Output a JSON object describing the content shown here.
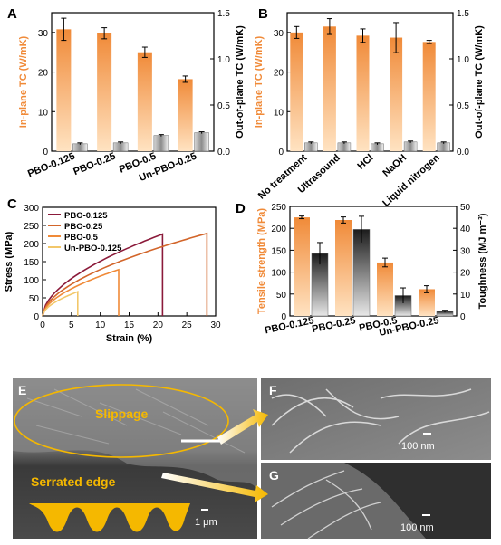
{
  "figure": {
    "panel_letters": [
      "A",
      "B",
      "C",
      "D",
      "E",
      "F",
      "G"
    ],
    "micrograph_labels": {
      "slippage": "Slippage",
      "serrated_edge": "Serrated edge",
      "scale_e": "1 μm",
      "scale_f": "100 nm",
      "scale_g": "100 nm"
    }
  },
  "colors": {
    "orange": "#F08A38",
    "orange_light": "#FFD9B0",
    "gray": "#9a9a9a",
    "gray_light": "#f2f2f2",
    "dark": "#262626",
    "dark_light": "#e6e6e6",
    "sem_bg": "#5b5b5b",
    "highlight": "#F5B800",
    "curve_125": "#8B1A3A",
    "curve_25": "#D2652A",
    "curve_5": "#F08A38",
    "curve_un": "#F2C76A"
  },
  "chart_data": [
    {
      "panel": "A",
      "type": "bar",
      "categories": [
        "PBO-0.125",
        "PBO-0.25",
        "PBO-0.5",
        "Un-PBO-0.25"
      ],
      "ylabel": "In-plane TC (W/mK)",
      "y2label": "Out-of-plane TC (W/mK)",
      "ylim": [
        0,
        35
      ],
      "y2lim": [
        0,
        1.5
      ],
      "yticks": [
        0,
        10,
        20,
        30
      ],
      "y2ticks": [
        0.0,
        0.5,
        1.0,
        1.5
      ],
      "series": [
        {
          "axis": "left",
          "values": [
            30.8,
            29.8,
            25.0,
            18.2
          ],
          "errors": [
            2.8,
            1.4,
            1.3,
            0.8
          ]
        },
        {
          "axis": "right",
          "values": [
            0.08,
            0.09,
            0.17,
            0.2
          ],
          "errors": [
            0.01,
            0.01,
            0.01,
            0.01
          ]
        }
      ]
    },
    {
      "panel": "B",
      "type": "bar",
      "categories": [
        "No treatment",
        "Ultrasound",
        "HCl",
        "NaOH",
        "Liquid nitrogen"
      ],
      "ylabel": "In-plane TC (W/mK)",
      "y2label": "Out-of-plane TC (W/mK)",
      "ylim": [
        0,
        35
      ],
      "y2lim": [
        0,
        1.5
      ],
      "yticks": [
        0,
        10,
        20,
        30
      ],
      "y2ticks": [
        0.0,
        0.5,
        1.0,
        1.5
      ],
      "series": [
        {
          "axis": "left",
          "values": [
            30.0,
            31.5,
            29.2,
            28.7,
            27.6
          ],
          "errors": [
            1.5,
            2.0,
            1.7,
            3.8,
            0.4
          ]
        },
        {
          "axis": "right",
          "values": [
            0.09,
            0.09,
            0.08,
            0.1,
            0.09
          ],
          "errors": [
            0.01,
            0.01,
            0.01,
            0.01,
            0.01
          ]
        }
      ]
    },
    {
      "panel": "C",
      "type": "line",
      "xlabel": "Strain (%)",
      "ylabel": "Stress (MPa)",
      "xlim": [
        0,
        30
      ],
      "ylim": [
        0,
        300
      ],
      "xticks": [
        0,
        5,
        10,
        15,
        20,
        25,
        30
      ],
      "yticks": [
        0,
        50,
        100,
        150,
        200,
        250,
        300
      ],
      "series": [
        {
          "name": "PBO-0.125",
          "fail_strain": 20.8,
          "fail_stress": 226
        },
        {
          "name": "PBO-0.25",
          "fail_strain": 28.5,
          "fail_stress": 228
        },
        {
          "name": "PBO-0.5",
          "fail_strain": 13.2,
          "fail_stress": 128
        },
        {
          "name": "Un-PBO-0.125",
          "fail_strain": 6.1,
          "fail_stress": 67
        }
      ]
    },
    {
      "panel": "D",
      "type": "bar",
      "categories": [
        "PBO-0.125",
        "PBO-0.25",
        "PBO-0.5",
        "Un-PBO-0.25"
      ],
      "ylabel": "Tensile strength (MPa)",
      "y2label": "Toughness (MJ m⁻³)",
      "ylim": [
        0,
        250
      ],
      "y2lim": [
        0,
        50
      ],
      "yticks": [
        0,
        50,
        100,
        150,
        200,
        250
      ],
      "y2ticks": [
        0,
        10,
        20,
        30,
        40,
        50
      ],
      "series": [
        {
          "axis": "left",
          "values": [
            225,
            219,
            122,
            61
          ],
          "errors": [
            3,
            7,
            10,
            8
          ]
        },
        {
          "axis": "right",
          "values": [
            28.5,
            39.5,
            9.3,
            2.1
          ],
          "errors": [
            5.0,
            6.0,
            3.5,
            0.5
          ]
        }
      ]
    }
  ]
}
